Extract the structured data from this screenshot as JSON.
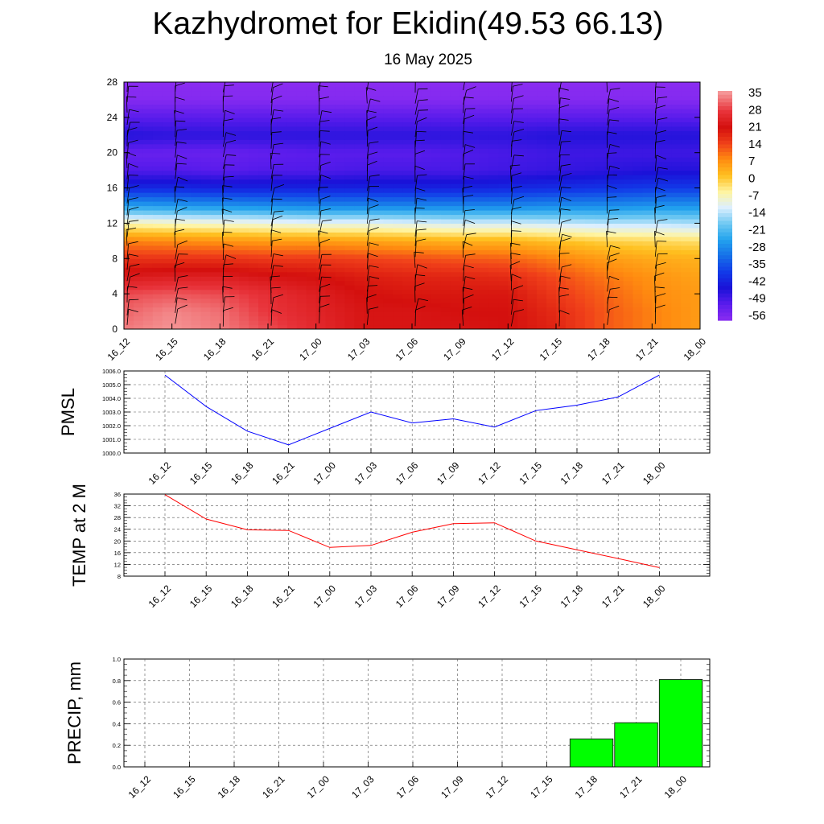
{
  "header": {
    "title": "Kazhydromet for Ekidin(49.53 66.13)",
    "subtitle": "16 May 2025"
  },
  "chart_data": [
    {
      "type": "heatmap",
      "title": "",
      "xlabel": "",
      "ylabel": "",
      "x_tick_labels": [
        "16_12",
        "16_15",
        "16_18",
        "16_21",
        "17_00",
        "17_03",
        "17_06",
        "17_09",
        "17_12",
        "17_15",
        "17_18",
        "17_21",
        "18_00"
      ],
      "y_ticks": [
        0,
        4,
        8,
        12,
        16,
        20,
        24,
        28
      ],
      "ylim": [
        0,
        28
      ],
      "colorbar": {
        "labels": [
          "35",
          "28",
          "21",
          "14",
          "7",
          "0",
          "-7",
          "-14",
          "-21",
          "-28",
          "-35",
          "-42",
          "-49",
          "-56"
        ],
        "stops": [
          {
            "value": 37,
            "color": "#f6a0a0"
          },
          {
            "value": 28,
            "color": "#e8333a"
          },
          {
            "value": 21,
            "color": "#d4100e"
          },
          {
            "value": 14,
            "color": "#f0401a"
          },
          {
            "value": 7,
            "color": "#ff8c10"
          },
          {
            "value": 0,
            "color": "#ffc020"
          },
          {
            "value": -7,
            "color": "#fff4a0"
          },
          {
            "value": -14,
            "color": "#dcefff"
          },
          {
            "value": -21,
            "color": "#6ec8f2"
          },
          {
            "value": -28,
            "color": "#22a2ee"
          },
          {
            "value": -35,
            "color": "#1670e8"
          },
          {
            "value": -42,
            "color": "#123ae8"
          },
          {
            "value": -49,
            "color": "#1a12d8"
          },
          {
            "value": -56,
            "color": "#5a1cec"
          },
          {
            "value": -63,
            "color": "#8a2cf0"
          }
        ]
      },
      "temperature_field": {
        "levels": [
          0,
          2,
          4,
          6,
          8,
          10,
          12,
          14,
          16,
          18,
          20,
          22,
          24,
          26,
          28
        ],
        "columns": [
          [
            34,
            32,
            30,
            23,
            16,
            8,
            -8,
            -28,
            -45,
            -55,
            -58,
            -50,
            -56,
            -62,
            -63
          ],
          [
            36,
            35,
            31,
            24,
            16,
            7,
            -9,
            -29,
            -45,
            -55,
            -58,
            -51,
            -56,
            -62,
            -63
          ],
          [
            34,
            33,
            30,
            24,
            16,
            6,
            -10,
            -30,
            -46,
            -56,
            -58,
            -51,
            -56,
            -62,
            -63
          ],
          [
            30,
            28,
            27,
            22,
            15,
            5,
            -11,
            -31,
            -46,
            -55,
            -57,
            -51,
            -56,
            -62,
            -63
          ],
          [
            26,
            25,
            24,
            21,
            15,
            5,
            -12,
            -32,
            -46,
            -55,
            -56,
            -51,
            -56,
            -62,
            -63
          ],
          [
            22,
            22,
            21,
            19,
            14,
            4,
            -12,
            -32,
            -46,
            -54,
            -56,
            -51,
            -56,
            -62,
            -63
          ],
          [
            22,
            22,
            20,
            18,
            13,
            3,
            -13,
            -32,
            -46,
            -54,
            -56,
            -51,
            -56,
            -62,
            -63
          ],
          [
            22,
            21,
            20,
            18,
            12,
            2,
            -14,
            -32,
            -46,
            -54,
            -55,
            -51,
            -56,
            -62,
            -63
          ],
          [
            21,
            21,
            20,
            17,
            11,
            2,
            -14,
            -32,
            -45,
            -53,
            -54,
            -51,
            -56,
            -62,
            -63
          ],
          [
            18,
            17,
            15,
            13,
            8,
            0,
            -15,
            -31,
            -44,
            -52,
            -53,
            -50,
            -56,
            -62,
            -63
          ],
          [
            12,
            12,
            11,
            9,
            5,
            -2,
            -16,
            -31,
            -43,
            -51,
            -53,
            -50,
            -56,
            -62,
            -63
          ],
          [
            8,
            8,
            7,
            6,
            3,
            -3,
            -16,
            -30,
            -42,
            -50,
            -53,
            -50,
            -56,
            -62,
            -63
          ],
          [
            5,
            5,
            5,
            4,
            2,
            -4,
            -17,
            -30,
            -42,
            -50,
            -53,
            -50,
            -56,
            -62,
            -63
          ]
        ]
      }
    },
    {
      "type": "line",
      "ylabel": "PMSL",
      "title": "",
      "xlabel": "",
      "x": [
        "16_12",
        "16_15",
        "16_18",
        "16_21",
        "17_00",
        "17_03",
        "17_06",
        "17_09",
        "17_12",
        "17_15",
        "17_18",
        "17_21",
        "18_00"
      ],
      "series": [
        {
          "values": [
            1005.7,
            1003.4,
            1001.6,
            1000.6,
            1001.8,
            1003.0,
            1002.2,
            1002.5,
            1001.9,
            1003.1,
            1003.5,
            1004.1,
            1005.7
          ],
          "color": "#0000ff"
        }
      ],
      "ylim": [
        1000.0,
        1006.0
      ],
      "y_tick_labels": [
        "1000.0",
        "1001.0",
        "1002.0",
        "1003.0",
        "1004.0",
        "1005.0",
        "1006.0"
      ],
      "grid": true
    },
    {
      "type": "line",
      "ylabel": "TEMP at 2 M",
      "title": "",
      "xlabel": "",
      "x": [
        "16_12",
        "16_15",
        "16_18",
        "16_21",
        "17_00",
        "17_03",
        "17_06",
        "17_09",
        "17_12",
        "17_15",
        "17_18",
        "17_21",
        "18_00"
      ],
      "series": [
        {
          "values": [
            35.8,
            27.5,
            23.8,
            23.6,
            17.8,
            18.5,
            23.0,
            25.9,
            26.2,
            20.0,
            17.0,
            14.0,
            10.9
          ],
          "color": "#ff0000"
        }
      ],
      "ylim": [
        8,
        36
      ],
      "y_tick_labels": [
        "8",
        "12",
        "16",
        "20",
        "24",
        "28",
        "32",
        "36"
      ],
      "grid": true
    },
    {
      "type": "bar",
      "ylabel": "PRECIP, mm",
      "title": "",
      "xlabel": "",
      "categories": [
        "16_12",
        "16_15",
        "16_18",
        "16_21",
        "17_00",
        "17_03",
        "17_06",
        "17_09",
        "17_12",
        "17_15",
        "17_18",
        "17_21",
        "18_00"
      ],
      "values": [
        0,
        0,
        0,
        0,
        0,
        0,
        0,
        0,
        0,
        0,
        0.26,
        0.41,
        0.81
      ],
      "color": "#00ff00",
      "ylim": [
        0.0,
        1.0
      ],
      "y_tick_labels": [
        "0.0",
        "0.2",
        "0.4",
        "0.6",
        "0.8",
        "1.0"
      ],
      "grid": true
    }
  ]
}
